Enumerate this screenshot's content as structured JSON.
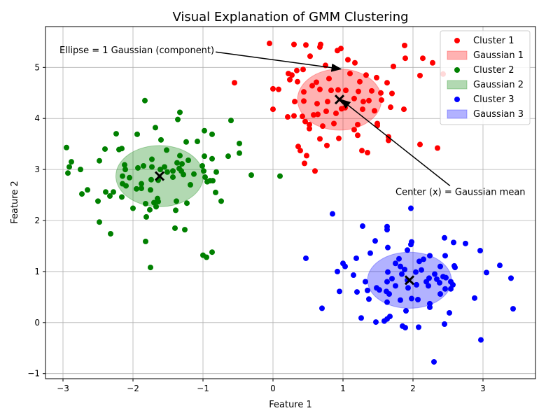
{
  "chart_data": {
    "type": "scatter",
    "title": "Visual Explanation of GMM Clustering",
    "xlabel": "Feature 1",
    "ylabel": "Feature 2",
    "xlim": [
      -3.25,
      3.75
    ],
    "ylim": [
      -1.1,
      5.8
    ],
    "xticks": [
      -3,
      -2,
      -1,
      0,
      1,
      2,
      3
    ],
    "yticks": [
      -1,
      0,
      1,
      2,
      3,
      4,
      5
    ],
    "grid": true,
    "legend_position": "top-right",
    "legend": [
      "Cluster 1",
      "Gaussian 1",
      "Cluster 2",
      "Gaussian 2",
      "Cluster 3",
      "Gaussian 3"
    ],
    "series": [
      {
        "name": "Cluster 1",
        "color": "#ff0000",
        "gaussian": {
          "name": "Gaussian 1",
          "mean": [
            0.95,
            4.37
          ],
          "width": 1.2,
          "height": 1.2,
          "fill": "#ff0000"
        },
        "points": [
          [
            -0.05,
            5.47
          ],
          [
            0.3,
            5.45
          ],
          [
            0.47,
            5.44
          ],
          [
            0.68,
            5.45
          ],
          [
            0.92,
            5.33
          ],
          [
            0.97,
            5.37
          ],
          [
            1.88,
            5.43
          ],
          [
            0.53,
            5.22
          ],
          [
            0.67,
            5.4
          ],
          [
            1.07,
            5.15
          ],
          [
            1.17,
            5.09
          ],
          [
            1.89,
            5.18
          ],
          [
            2.14,
            5.18
          ],
          [
            2.28,
            5.09
          ],
          [
            0.34,
            4.94
          ],
          [
            0.43,
            4.96
          ],
          [
            0.75,
            5.04
          ],
          [
            1.1,
            4.88
          ],
          [
            1.33,
            4.85
          ],
          [
            1.72,
            5.02
          ],
          [
            2.1,
            4.84
          ],
          [
            2.43,
            4.87
          ],
          [
            0.22,
            4.88
          ],
          [
            0.27,
            4.85
          ],
          [
            0.24,
            4.76
          ],
          [
            0.35,
            4.72
          ],
          [
            0.62,
            4.71
          ],
          [
            1.24,
            4.72
          ],
          [
            1.48,
            4.8
          ],
          [
            0.8,
            4.78
          ],
          [
            1.63,
            4.7
          ],
          [
            -0.55,
            4.7
          ],
          [
            0.0,
            4.58
          ],
          [
            0.08,
            4.57
          ],
          [
            0.44,
            4.52
          ],
          [
            0.56,
            4.64
          ],
          [
            0.67,
            4.57
          ],
          [
            0.83,
            4.55
          ],
          [
            0.93,
            4.56
          ],
          [
            1.04,
            4.55
          ],
          [
            1.22,
            4.53
          ],
          [
            1.41,
            4.54
          ],
          [
            1.54,
            4.5
          ],
          [
            1.7,
            4.49
          ],
          [
            0.31,
            4.33
          ],
          [
            0.44,
            4.34
          ],
          [
            0.63,
            4.29
          ],
          [
            0.78,
            4.33
          ],
          [
            1.16,
            4.39
          ],
          [
            1.29,
            4.33
          ],
          [
            1.37,
            4.35
          ],
          [
            1.55,
            4.36
          ],
          [
            1.68,
            4.22
          ],
          [
            0.0,
            4.18
          ],
          [
            0.21,
            4.03
          ],
          [
            0.3,
            4.05
          ],
          [
            0.58,
            4.07
          ],
          [
            0.64,
            4.08
          ],
          [
            0.76,
            4.14
          ],
          [
            0.98,
            4.19
          ],
          [
            1.28,
            4.18
          ],
          [
            1.45,
            4.15
          ],
          [
            1.87,
            4.18
          ],
          [
            0.46,
            3.94
          ],
          [
            0.52,
            3.88
          ],
          [
            0.71,
            3.85
          ],
          [
            0.87,
            3.9
          ],
          [
            1.16,
            3.78
          ],
          [
            1.21,
            3.88
          ],
          [
            1.49,
            3.9
          ],
          [
            0.52,
            3.8
          ],
          [
            1.21,
            3.67
          ],
          [
            1.65,
            3.64
          ],
          [
            1.65,
            3.57
          ],
          [
            0.67,
            3.6
          ],
          [
            0.94,
            3.61
          ],
          [
            0.77,
            3.47
          ],
          [
            1.27,
            3.37
          ],
          [
            1.35,
            3.33
          ],
          [
            2.1,
            3.49
          ],
          [
            2.35,
            3.42
          ],
          [
            0.36,
            3.45
          ],
          [
            0.39,
            3.37
          ],
          [
            0.48,
            3.27
          ],
          [
            0.45,
            3.12
          ],
          [
            0.6,
            2.97
          ],
          [
            0.42,
            4.04
          ],
          [
            1.03,
            4.21
          ],
          [
            1.49,
            3.86
          ],
          [
            0.9,
            4.1
          ]
        ]
      },
      {
        "name": "Cluster 2",
        "color": "#008000",
        "gaussian": {
          "name": "Gaussian 2",
          "mean": [
            -1.62,
            2.87
          ],
          "width": 1.25,
          "height": 1.2,
          "fill": "#008000"
        },
        "points": [
          [
            -1.83,
            4.35
          ],
          [
            -1.33,
            4.12
          ],
          [
            -1.36,
            3.98
          ],
          [
            -0.6,
            3.96
          ],
          [
            -1.68,
            3.82
          ],
          [
            -0.98,
            3.76
          ],
          [
            -2.24,
            3.7
          ],
          [
            -1.94,
            3.69
          ],
          [
            -0.87,
            3.69
          ],
          [
            -1.6,
            3.58
          ],
          [
            -1.24,
            3.54
          ],
          [
            -1.08,
            3.55
          ],
          [
            -0.48,
            3.51
          ],
          [
            -2.95,
            3.43
          ],
          [
            -2.4,
            3.4
          ],
          [
            -2.2,
            3.39
          ],
          [
            -2.16,
            3.41
          ],
          [
            -1.52,
            3.38
          ],
          [
            -0.48,
            3.32
          ],
          [
            -1.33,
            3.27
          ],
          [
            -0.98,
            3.26
          ],
          [
            -0.64,
            3.26
          ],
          [
            -2.88,
            3.15
          ],
          [
            -2.48,
            3.17
          ],
          [
            -1.73,
            3.2
          ],
          [
            -1.37,
            3.13
          ],
          [
            -1.3,
            3.11
          ],
          [
            -1.21,
            3.18
          ],
          [
            -0.87,
            3.21
          ],
          [
            -2.12,
            3.09
          ],
          [
            -1.93,
            3.03
          ],
          [
            -1.85,
            3.07
          ],
          [
            -1.73,
            3.05
          ],
          [
            -1.55,
            3.05
          ],
          [
            -1.34,
            3.02
          ],
          [
            -1.01,
            3.07
          ],
          [
            -2.91,
            3.05
          ],
          [
            -2.75,
            3.0
          ],
          [
            -2.11,
            3.0
          ],
          [
            -1.61,
            3.0
          ],
          [
            -1.43,
            2.97
          ],
          [
            -1.31,
            2.97
          ],
          [
            -0.99,
            2.97
          ],
          [
            -0.81,
            2.95
          ],
          [
            -2.93,
            2.93
          ],
          [
            -2.15,
            2.87
          ],
          [
            -2.05,
            2.84
          ],
          [
            -1.51,
            2.95
          ],
          [
            -1.28,
            2.9
          ],
          [
            -1.13,
            2.91
          ],
          [
            -0.97,
            2.85
          ],
          [
            -0.9,
            2.78
          ],
          [
            -0.31,
            2.89
          ],
          [
            0.1,
            2.87
          ],
          [
            -2.15,
            2.72
          ],
          [
            -1.88,
            2.72
          ],
          [
            -1.74,
            2.8
          ],
          [
            -1.64,
            2.79
          ],
          [
            -1.43,
            2.85
          ],
          [
            -1.18,
            2.7
          ],
          [
            -0.94,
            2.76
          ],
          [
            -0.86,
            2.78
          ],
          [
            -2.73,
            2.52
          ],
          [
            -2.65,
            2.6
          ],
          [
            -2.39,
            2.56
          ],
          [
            -2.33,
            2.48
          ],
          [
            -2.28,
            2.56
          ],
          [
            -2.1,
            2.68
          ],
          [
            -1.95,
            2.62
          ],
          [
            -1.88,
            2.63
          ],
          [
            -1.75,
            2.6
          ],
          [
            -1.65,
            2.43
          ],
          [
            -1.7,
            2.35
          ],
          [
            -2.5,
            2.38
          ],
          [
            -2.16,
            2.46
          ],
          [
            -1.82,
            2.33
          ],
          [
            -1.64,
            2.37
          ],
          [
            -1.38,
            2.38
          ],
          [
            -1.23,
            2.34
          ],
          [
            -0.74,
            2.38
          ],
          [
            -0.82,
            2.55
          ],
          [
            -2.0,
            2.24
          ],
          [
            -1.76,
            2.21
          ],
          [
            -1.67,
            2.27
          ],
          [
            -1.39,
            2.2
          ],
          [
            -1.81,
            2.07
          ],
          [
            -2.48,
            1.97
          ],
          [
            -1.4,
            1.85
          ],
          [
            -1.26,
            1.82
          ],
          [
            -2.32,
            1.74
          ],
          [
            -1.82,
            1.59
          ],
          [
            -0.87,
            1.38
          ],
          [
            -1.0,
            1.32
          ],
          [
            -0.95,
            1.28
          ],
          [
            -1.75,
            1.08
          ]
        ]
      },
      {
        "name": "Cluster 3",
        "color": "#0000ff",
        "gaussian": {
          "name": "Gaussian 3",
          "mean": [
            1.95,
            0.83
          ],
          "width": 1.2,
          "height": 1.1,
          "fill": "#0000ff"
        },
        "points": [
          [
            1.97,
            2.24
          ],
          [
            0.85,
            2.13
          ],
          [
            1.28,
            1.89
          ],
          [
            1.63,
            1.88
          ],
          [
            1.63,
            1.82
          ],
          [
            1.46,
            1.6
          ],
          [
            1.98,
            1.58
          ],
          [
            1.97,
            1.53
          ],
          [
            2.45,
            1.66
          ],
          [
            2.58,
            1.57
          ],
          [
            2.75,
            1.55
          ],
          [
            2.96,
            1.41
          ],
          [
            1.64,
            1.47
          ],
          [
            1.39,
            1.36
          ],
          [
            1.92,
            1.42
          ],
          [
            2.24,
            1.31
          ],
          [
            2.46,
            1.31
          ],
          [
            0.47,
            1.26
          ],
          [
            1.0,
            1.16
          ],
          [
            1.03,
            1.1
          ],
          [
            1.19,
            1.26
          ],
          [
            1.8,
            1.25
          ],
          [
            1.75,
            1.16
          ],
          [
            1.82,
            1.1
          ],
          [
            2.09,
            1.2
          ],
          [
            2.15,
            1.24
          ],
          [
            2.39,
            1.1
          ],
          [
            2.59,
            1.11
          ],
          [
            2.6,
            1.08
          ],
          [
            3.24,
            1.12
          ],
          [
            0.92,
            1.0
          ],
          [
            1.15,
            0.93
          ],
          [
            1.64,
            0.99
          ],
          [
            1.84,
            0.95
          ],
          [
            1.88,
            1.04
          ],
          [
            2.12,
            1.03
          ],
          [
            2.04,
            0.99
          ],
          [
            2.31,
            0.95
          ],
          [
            2.43,
            0.9
          ],
          [
            3.05,
            0.98
          ],
          [
            1.32,
            0.8
          ],
          [
            1.63,
            0.8
          ],
          [
            1.7,
            0.86
          ],
          [
            1.92,
            0.83
          ],
          [
            2.19,
            0.8
          ],
          [
            2.23,
            0.87
          ],
          [
            2.34,
            0.85
          ],
          [
            2.47,
            0.88
          ],
          [
            2.54,
            0.8
          ],
          [
            3.4,
            0.87
          ],
          [
            1.2,
            0.6
          ],
          [
            1.35,
            0.63
          ],
          [
            1.48,
            0.68
          ],
          [
            1.52,
            0.64
          ],
          [
            1.75,
            0.72
          ],
          [
            1.93,
            0.68
          ],
          [
            2.05,
            0.74
          ],
          [
            2.22,
            0.72
          ],
          [
            2.38,
            0.78
          ],
          [
            2.46,
            0.66
          ],
          [
            2.54,
            0.66
          ],
          [
            2.57,
            0.74
          ],
          [
            0.95,
            0.61
          ],
          [
            1.37,
            0.46
          ],
          [
            1.66,
            0.56
          ],
          [
            1.82,
            0.44
          ],
          [
            1.98,
            0.47
          ],
          [
            2.07,
            0.45
          ],
          [
            2.39,
            0.56
          ],
          [
            2.88,
            0.48
          ],
          [
            0.7,
            0.28
          ],
          [
            1.63,
            0.4
          ],
          [
            1.9,
            0.23
          ],
          [
            2.24,
            0.37
          ],
          [
            2.24,
            0.3
          ],
          [
            2.52,
            0.19
          ],
          [
            3.43,
            0.27
          ],
          [
            1.26,
            0.09
          ],
          [
            1.47,
            0.01
          ],
          [
            1.59,
            0.03
          ],
          [
            1.63,
            0.07
          ],
          [
            1.67,
            0.12
          ],
          [
            1.85,
            -0.07
          ],
          [
            1.89,
            -0.1
          ],
          [
            2.08,
            -0.09
          ],
          [
            2.45,
            -0.03
          ],
          [
            2.97,
            -0.34
          ],
          [
            2.3,
            -0.77
          ],
          [
            1.62,
            0.61
          ]
        ]
      }
    ],
    "centers": [
      [
        0.95,
        4.37
      ],
      [
        -1.62,
        2.87
      ],
      [
        1.95,
        0.83
      ]
    ],
    "annotations": [
      {
        "text": "Ellipse = 1 Gaussian (component)",
        "text_xy": [
          -3.05,
          5.35
        ],
        "arrow_to": [
          0.97,
          4.97
        ]
      },
      {
        "text": "Center (x) = Gaussian mean",
        "text_xy": [
          1.75,
          2.57
        ],
        "arrow_to": [
          0.97,
          4.37
        ]
      }
    ]
  }
}
